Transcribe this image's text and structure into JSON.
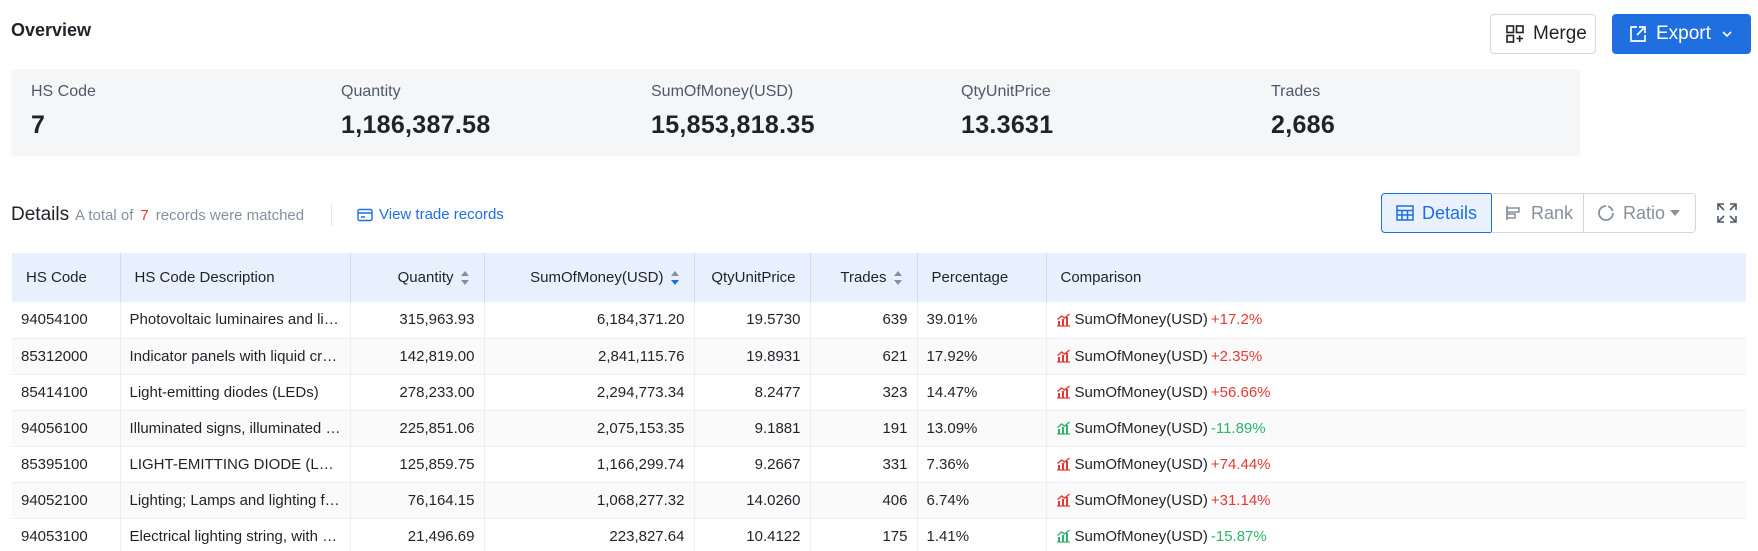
{
  "header": {
    "title": "Overview",
    "merge_label": "Merge",
    "export_label": "Export"
  },
  "cards": [
    {
      "label": "HS Code",
      "value": "7"
    },
    {
      "label": "Quantity",
      "value": "1,186,387.58"
    },
    {
      "label": "SumOfMoney(USD)",
      "value": "15,853,818.35"
    },
    {
      "label": "QtyUnitPrice",
      "value": "13.3631"
    },
    {
      "label": "Trades",
      "value": "2,686"
    }
  ],
  "details": {
    "title": "Details",
    "match_prefix": "A total of",
    "match_count": "7",
    "match_suffix": "records were matched",
    "view_link": "View trade records"
  },
  "view_tabs": {
    "details": "Details",
    "rank": "Rank",
    "ratio": "Ratio"
  },
  "table": {
    "columns": [
      "HS Code",
      "HS Code Description",
      "Quantity",
      "SumOfMoney(USD)",
      "QtyUnitPrice",
      "Trades",
      "Percentage",
      "Comparison"
    ],
    "rows": [
      {
        "code": "94054100",
        "desc": "Photovoltaic luminaires and lighting fittings",
        "qty": "315,963.93",
        "sum": "6,184,371.20",
        "price": "19.5730",
        "trades": "639",
        "pct": "39.01%",
        "cmp_label": "SumOfMoney(USD)",
        "cmp_value": "+17.2%",
        "trend": "up"
      },
      {
        "code": "85312000",
        "desc": "Indicator panels with liquid crystal devices",
        "qty": "142,819.00",
        "sum": "2,841,115.76",
        "price": "19.8931",
        "trades": "621",
        "pct": "17.92%",
        "cmp_label": "SumOfMoney(USD)",
        "cmp_value": "+2.35%",
        "trend": "up"
      },
      {
        "code": "85414100",
        "desc": "Light-emitting diodes (LEDs)",
        "qty": "278,233.00",
        "sum": "2,294,773.34",
        "price": "8.2477",
        "trades": "323",
        "pct": "14.47%",
        "cmp_label": "SumOfMoney(USD)",
        "cmp_value": "+56.66%",
        "trend": "up"
      },
      {
        "code": "94056100",
        "desc": "Illuminated signs, illuminated name-plates",
        "qty": "225,851.06",
        "sum": "2,075,153.35",
        "price": "9.1881",
        "trades": "191",
        "pct": "13.09%",
        "cmp_label": "SumOfMoney(USD)",
        "cmp_value": "-11.89%",
        "trend": "down"
      },
      {
        "code": "85395100",
        "desc": "LIGHT-EMITTING DIODE (LED) LIGHT SOURCES",
        "qty": "125,859.75",
        "sum": "1,166,299.74",
        "price": "9.2667",
        "trades": "331",
        "pct": "7.36%",
        "cmp_label": "SumOfMoney(USD)",
        "cmp_value": "+74.44%",
        "trend": "up"
      },
      {
        "code": "94052100",
        "desc": "Lighting; Lamps and lighting fittings",
        "qty": "76,164.15",
        "sum": "1,068,277.32",
        "price": "14.0260",
        "trades": "406",
        "pct": "6.74%",
        "cmp_label": "SumOfMoney(USD)",
        "cmp_value": "+31.14%",
        "trend": "up"
      },
      {
        "code": "94053100",
        "desc": "Electrical lighting string, with LED light sources",
        "qty": "21,496.69",
        "sum": "223,827.64",
        "price": "10.4122",
        "trades": "175",
        "pct": "1.41%",
        "cmp_label": "SumOfMoney(USD)",
        "cmp_value": "-15.87%",
        "trend": "down"
      }
    ]
  },
  "colors": {
    "accent": "#1f6fe0",
    "up": "#e53935",
    "down": "#2fb56b",
    "header_bg": "#e8f0fd"
  }
}
